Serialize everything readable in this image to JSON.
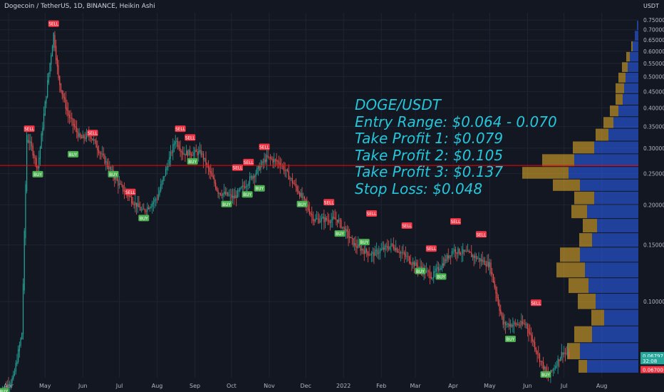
{
  "header": {
    "title": "Dogecoin / TetherUS, 1D, BINANCE, Heikin Ashi",
    "unit": "USDT"
  },
  "annotation": {
    "lines": [
      "DOGE/USDT",
      "Entry Range: $0.064 - 0.070",
      "Take Profit 1: $0.079",
      "Take Profit 2: $0.105",
      "Take Profit 3: $0.137",
      "Stop Loss: $0.048"
    ]
  },
  "colors": {
    "background": "#131722",
    "grid": "#1f2433",
    "axis_text": "#b2b5be",
    "up": "#26a69a",
    "down": "#ef5350",
    "annotation": "#26c6da",
    "buy_badge": "#4caf50",
    "sell_badge": "#f23645",
    "vp_up": "#2962ff",
    "vp_down": "#f0b429",
    "hline": "#ff0000"
  },
  "chart_data": {
    "type": "candlestick",
    "title": "Dogecoin / TetherUS, 1D, BINANCE, Heikin Ashi",
    "y_axis": {
      "scale": "log",
      "ticks": [
        "0.75000",
        "0.70000",
        "0.65000",
        "0.60000",
        "0.55000",
        "0.50000",
        "0.45000",
        "0.40000",
        "0.35000",
        "0.30000",
        "0.25000",
        "0.20000",
        "0.15000",
        "0.10000"
      ],
      "range": [
        0.058,
        0.79
      ]
    },
    "x_axis": {
      "ticks": [
        "Apr",
        "May",
        "Jun",
        "Jul",
        "Aug",
        "Sep",
        "Oct",
        "Nov",
        "Dec",
        "2022",
        "Feb",
        "Mar",
        "Apr",
        "May",
        "Jun",
        "Jul",
        "Aug"
      ],
      "start": "2021-03-25",
      "end": "2022-08-31"
    },
    "price_path": [
      [
        "2021-03-25",
        0.052
      ],
      [
        "2021-04-05",
        0.058
      ],
      [
        "2021-04-12",
        0.08
      ],
      [
        "2021-04-16",
        0.33
      ],
      [
        "2021-04-20",
        0.3
      ],
      [
        "2021-04-25",
        0.26
      ],
      [
        "2021-05-03",
        0.48
      ],
      [
        "2021-05-08",
        0.68
      ],
      [
        "2021-05-12",
        0.49
      ],
      [
        "2021-05-20",
        0.38
      ],
      [
        "2021-05-30",
        0.32
      ],
      [
        "2021-06-07",
        0.33
      ],
      [
        "2021-06-20",
        0.27
      ],
      [
        "2021-07-01",
        0.23
      ],
      [
        "2021-07-20",
        0.19
      ],
      [
        "2021-08-01",
        0.21
      ],
      [
        "2021-08-16",
        0.32
      ],
      [
        "2021-08-22",
        0.29
      ],
      [
        "2021-09-06",
        0.29
      ],
      [
        "2021-09-20",
        0.22
      ],
      [
        "2021-10-03",
        0.21
      ],
      [
        "2021-10-20",
        0.25
      ],
      [
        "2021-10-30",
        0.28
      ],
      [
        "2021-11-10",
        0.27
      ],
      [
        "2021-11-25",
        0.22
      ],
      [
        "2021-12-08",
        0.18
      ],
      [
        "2021-12-27",
        0.18
      ],
      [
        "2022-01-10",
        0.15
      ],
      [
        "2022-01-24",
        0.14
      ],
      [
        "2022-02-10",
        0.15
      ],
      [
        "2022-03-01",
        0.13
      ],
      [
        "2022-03-15",
        0.12
      ],
      [
        "2022-04-01",
        0.145
      ],
      [
        "2022-04-15",
        0.14
      ],
      [
        "2022-05-01",
        0.13
      ],
      [
        "2022-05-12",
        0.085
      ],
      [
        "2022-05-31",
        0.085
      ],
      [
        "2022-06-12",
        0.065
      ],
      [
        "2022-06-18",
        0.058
      ],
      [
        "2022-06-30",
        0.07
      ],
      [
        "2022-07-05",
        0.068
      ]
    ],
    "signals": [
      {
        "label": "BUY",
        "date": "2021-03-28",
        "price": 0.055
      },
      {
        "label": "SELL",
        "date": "2021-04-18",
        "price": 0.33
      },
      {
        "label": "BUY",
        "date": "2021-04-25",
        "price": 0.26
      },
      {
        "label": "SELL",
        "date": "2021-05-08",
        "price": 0.7
      },
      {
        "label": "BUY",
        "date": "2021-05-24",
        "price": 0.3
      },
      {
        "label": "SELL",
        "date": "2021-06-09",
        "price": 0.32
      },
      {
        "label": "BUY",
        "date": "2021-06-26",
        "price": 0.26
      },
      {
        "label": "SELL",
        "date": "2021-07-10",
        "price": 0.21
      },
      {
        "label": "BUY",
        "date": "2021-07-21",
        "price": 0.19
      },
      {
        "label": "SELL",
        "date": "2021-08-20",
        "price": 0.33
      },
      {
        "label": "SELL",
        "date": "2021-08-28",
        "price": 0.31
      },
      {
        "label": "BUY",
        "date": "2021-08-30",
        "price": 0.285
      },
      {
        "label": "BUY",
        "date": "2021-09-27",
        "price": 0.21
      },
      {
        "label": "SELL",
        "date": "2021-10-06",
        "price": 0.25
      },
      {
        "label": "SELL",
        "date": "2021-10-15",
        "price": 0.26
      },
      {
        "label": "BUY",
        "date": "2021-10-14",
        "price": 0.225
      },
      {
        "label": "BUY",
        "date": "2021-10-24",
        "price": 0.235
      },
      {
        "label": "SELL",
        "date": "2021-10-28",
        "price": 0.29
      },
      {
        "label": "BUY",
        "date": "2021-11-28",
        "price": 0.21
      },
      {
        "label": "SELL",
        "date": "2021-12-20",
        "price": 0.195
      },
      {
        "label": "BUY",
        "date": "2021-12-29",
        "price": 0.17
      },
      {
        "label": "BUY",
        "date": "2022-01-18",
        "price": 0.16
      },
      {
        "label": "SELL",
        "date": "2022-01-24",
        "price": 0.18
      },
      {
        "label": "SELL",
        "date": "2022-02-22",
        "price": 0.165
      },
      {
        "label": "BUY",
        "date": "2022-03-05",
        "price": 0.13
      },
      {
        "label": "SELL",
        "date": "2022-03-14",
        "price": 0.14
      },
      {
        "label": "BUY",
        "date": "2022-03-22",
        "price": 0.125
      },
      {
        "label": "SELL",
        "date": "2022-04-03",
        "price": 0.17
      },
      {
        "label": "SELL",
        "date": "2022-04-24",
        "price": 0.155
      },
      {
        "label": "BUY",
        "date": "2022-05-18",
        "price": 0.08
      },
      {
        "label": "SELL",
        "date": "2022-06-08",
        "price": 0.095
      },
      {
        "label": "BUY",
        "date": "2022-06-16",
        "price": 0.062
      }
    ],
    "horizontal_line": 0.265,
    "volume_profile": {
      "levels": [
        0.72,
        0.67,
        0.62,
        0.575,
        0.535,
        0.495,
        0.46,
        0.425,
        0.39,
        0.36,
        0.33,
        0.3,
        0.275,
        0.25,
        0.23,
        0.21,
        0.19,
        0.172,
        0.155,
        0.14,
        0.125,
        0.112,
        0.1,
        0.089,
        0.079,
        0.07,
        0.062
      ],
      "up": [
        2,
        5,
        8,
        12,
        15,
        18,
        20,
        22,
        28,
        35,
        42,
        62,
        90,
        98,
        82,
        62,
        72,
        58,
        65,
        82,
        75,
        70,
        60,
        48,
        65,
        82,
        72
      ],
      "down": [
        0,
        0,
        2,
        5,
        8,
        10,
        12,
        10,
        12,
        14,
        18,
        30,
        45,
        65,
        38,
        28,
        22,
        20,
        18,
        28,
        40,
        28,
        25,
        18,
        25,
        18,
        12
      ]
    },
    "price_labels": [
      {
        "text": "0.06797",
        "price": 0.06797,
        "color": "#26a69a"
      },
      {
        "text": "32:08",
        "price": 0.0655,
        "color": "#26a69a"
      },
      {
        "text": "0.06700",
        "price": 0.0615,
        "color": "#f23645"
      }
    ]
  }
}
